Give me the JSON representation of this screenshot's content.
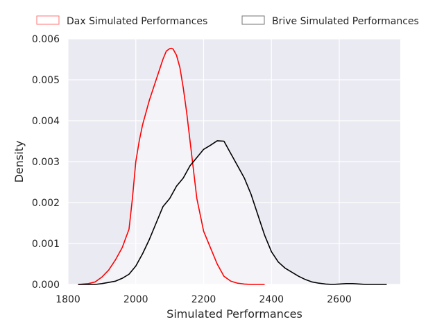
{
  "chart_data": {
    "type": "area",
    "title": "",
    "xlabel": "Simulated Performances",
    "ylabel": "Density",
    "xlim": [
      1800,
      2780
    ],
    "ylim": [
      0,
      0.006
    ],
    "xticks": [
      1800,
      2000,
      2200,
      2400,
      2600
    ],
    "xtick_labels": [
      "1800",
      "2000",
      "2200",
      "2400",
      "2600"
    ],
    "yticks": [
      0,
      0.001,
      0.002,
      0.003,
      0.004,
      0.005,
      0.006
    ],
    "ytick_labels": [
      "0.000",
      "0.001",
      "0.002",
      "0.003",
      "0.004",
      "0.005",
      "0.006"
    ],
    "grid": true,
    "legend_position": "top",
    "series": [
      {
        "name": "Dax Simulated Performances",
        "color": "#ff0000",
        "x": [
          1830,
          1860,
          1880,
          1900,
          1920,
          1940,
          1960,
          1980,
          1990,
          2000,
          2010,
          2020,
          2040,
          2060,
          2080,
          2090,
          2100,
          2105,
          2110,
          2120,
          2130,
          2140,
          2150,
          2160,
          2170,
          2180,
          2190,
          2200,
          2220,
          2240,
          2260,
          2280,
          2300,
          2320,
          2340,
          2360,
          2380
        ],
        "values": [
          0.0,
          2e-05,
          6e-05,
          0.00018,
          0.00035,
          0.0006,
          0.0009,
          0.00135,
          0.0021,
          0.003,
          0.0035,
          0.0039,
          0.0045,
          0.005,
          0.0055,
          0.0057,
          0.00576,
          0.00577,
          0.00575,
          0.0056,
          0.0053,
          0.0048,
          0.0042,
          0.0035,
          0.0028,
          0.0021,
          0.0017,
          0.0013,
          0.0009,
          0.0005,
          0.0002,
          8e-05,
          3e-05,
          1e-05,
          0.0,
          0.0,
          0.0
        ]
      },
      {
        "name": "Brive Simulated Performances",
        "color": "#000000",
        "x": [
          1830,
          1860,
          1880,
          1900,
          1940,
          1960,
          1980,
          2000,
          2020,
          2040,
          2060,
          2080,
          2100,
          2120,
          2140,
          2160,
          2180,
          2200,
          2220,
          2240,
          2260,
          2280,
          2300,
          2320,
          2340,
          2360,
          2380,
          2400,
          2420,
          2440,
          2460,
          2480,
          2500,
          2520,
          2540,
          2560,
          2580,
          2600,
          2620,
          2640,
          2660,
          2680,
          2700,
          2740
        ],
        "values": [
          0.0,
          0.0,
          0.0,
          2e-05,
          8e-05,
          0.00015,
          0.00025,
          0.00045,
          0.00075,
          0.0011,
          0.0015,
          0.0019,
          0.0021,
          0.0024,
          0.0026,
          0.0029,
          0.0031,
          0.0033,
          0.0034,
          0.00351,
          0.0035,
          0.0032,
          0.0029,
          0.0026,
          0.0022,
          0.0017,
          0.0012,
          0.0008,
          0.00055,
          0.0004,
          0.0003,
          0.0002,
          0.00012,
          6e-05,
          3e-05,
          1e-05,
          0.0,
          1e-05,
          2e-05,
          2e-05,
          1e-05,
          0.0,
          0.0,
          0.0
        ]
      }
    ]
  }
}
